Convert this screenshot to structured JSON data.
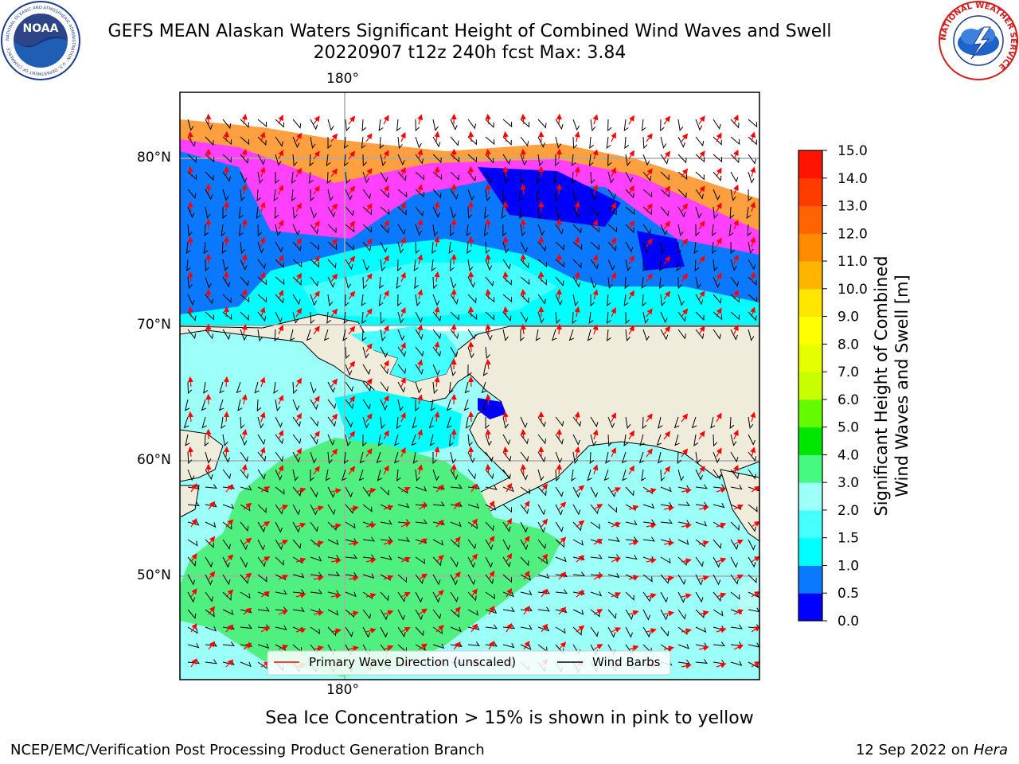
{
  "title": {
    "line1": "GEFS MEAN Alaskan Waters Significant Height of Combined Wind Waves and Swell",
    "line2": "20220907 t12z 240h fcst   Max: 3.84"
  },
  "logos": {
    "left": "NOAA",
    "right": "NATIONAL WEATHER SERVICE",
    "noaa_ring": "NATIONAL OCEANIC AND ATMOSPHERIC ADMINISTRATION · U.S. DEPARTMENT OF COMMERCE"
  },
  "map": {
    "lon_top": "180°",
    "lon_bottom": "180°",
    "lat_labels": [
      "80°N",
      "70°N",
      "60°N",
      "50°N"
    ],
    "colors": {
      "land": "#efecdc",
      "ocean_low": "#8cfcfc",
      "ocean_mid": "#00f0f8",
      "ocean_high": "#50f080",
      "ice_pink": "#ff40ff",
      "ice_orange": "#ffa040",
      "ice_yellow": "#ffff00",
      "deep_blue": "#0000ff",
      "blue": "#0a78ff"
    }
  },
  "legend": {
    "wave_label": "Primary Wave Direction (unscaled)",
    "barb_label": "Wind Barbs"
  },
  "colorbar": {
    "label_line1": "Significant Height of Combined",
    "label_line2": "Wind Waves and Swell [m]",
    "ticks": [
      "0.0",
      "0.5",
      "1.0",
      "1.5",
      "2.0",
      "3.0",
      "4.0",
      "5.0",
      "6.0",
      "7.0",
      "8.0",
      "9.0",
      "10.0",
      "11.0",
      "12.0",
      "13.0",
      "14.0",
      "15.0"
    ],
    "colors": [
      "#0000ff",
      "#0a78ff",
      "#00ffff",
      "#46ffff",
      "#9cfff8",
      "#46fa80",
      "#00e600",
      "#64fa00",
      "#c8ff00",
      "#e6ff00",
      "#ffff00",
      "#ffe600",
      "#ffb400",
      "#ff8c00",
      "#ff6400",
      "#ff3c00",
      "#ff1400"
    ]
  },
  "caption": "Sea Ice Concentration > 15% is shown in pink to yellow",
  "footer": {
    "credit": "NCEP/EMC/Verification Post Processing Product Generation Branch",
    "date": "12 Sep 2022 on",
    "machine": "Hera"
  }
}
